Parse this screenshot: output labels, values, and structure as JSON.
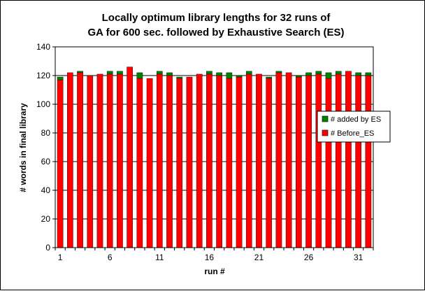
{
  "chart_data": {
    "type": "bar",
    "stacked": true,
    "title_line1": "Locally optimum library lengths for 32 runs of",
    "title_line2": "GA for 600 sec. followed by  Exhaustive Search (ES)",
    "xlabel": "run #",
    "ylabel": "# words in final library",
    "ylim": [
      0,
      140
    ],
    "yticks": [
      "0",
      "20",
      "40",
      "60",
      "80",
      "100",
      "120",
      "140"
    ],
    "xticks": [
      "1",
      "6",
      "11",
      "16",
      "21",
      "26",
      "31"
    ],
    "grid": "horizontal",
    "legend_position": "right",
    "categories": [
      1,
      2,
      3,
      4,
      5,
      6,
      7,
      8,
      9,
      10,
      11,
      12,
      13,
      14,
      15,
      16,
      17,
      18,
      19,
      20,
      21,
      22,
      23,
      24,
      25,
      26,
      27,
      28,
      29,
      30,
      31,
      32
    ],
    "series": [
      {
        "name": "# Before_ES",
        "color": "#ff0000",
        "values": [
          117,
          122,
          122,
          120,
          121,
          121,
          121,
          126,
          118,
          118,
          121,
          120,
          118,
          119,
          121,
          121,
          120,
          118,
          119,
          121,
          121,
          118,
          122,
          122,
          119,
          120,
          121,
          118,
          121,
          123,
          120,
          120
        ]
      },
      {
        "name": "# added by ES",
        "color": "#008000",
        "values": [
          2,
          0,
          1,
          0,
          0,
          2,
          2,
          0,
          4,
          0,
          2,
          2,
          1,
          0,
          0,
          2,
          2,
          4,
          1,
          2,
          0,
          1,
          1,
          0,
          1,
          2,
          2,
          4,
          2,
          0,
          2,
          2
        ]
      }
    ]
  }
}
